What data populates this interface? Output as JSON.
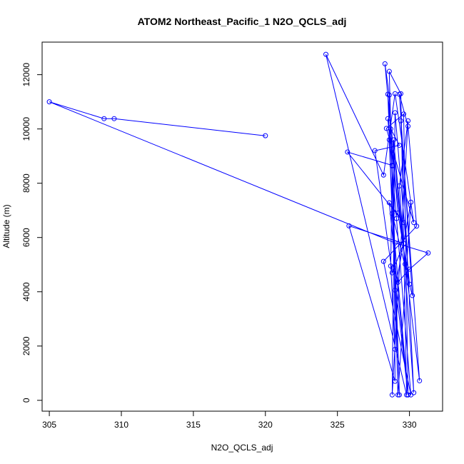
{
  "chart_data": {
    "type": "scatter",
    "title": "ATOM2 Northeast_Pacific_1 N2O_QCLS_adj",
    "xlabel": "N2O_QCLS_adj",
    "ylabel": "Altitude (m)",
    "xlim": [
      304.5,
      332.3
    ],
    "ylim": [
      -400,
      13200
    ],
    "xticks": [
      305,
      310,
      315,
      320,
      325,
      330
    ],
    "yticks": [
      0,
      2000,
      4000,
      6000,
      8000,
      10000,
      12000
    ],
    "grid": false,
    "legend": "none",
    "color": "#0000ff",
    "series": [
      {
        "x": [
          320.0,
          309.5,
          308.8,
          305.0,
          329.0,
          331.3,
          330.0,
          329.2,
          328.9,
          329.9,
          328.6,
          329.6,
          325.7,
          328.8,
          329.3,
          328.6,
          328.7,
          329.3,
          327.6,
          328.8,
          329.6,
          325.8,
          329.0,
          328.9,
          329.7,
          328.5,
          329.0,
          330.1,
          329.2,
          328.6,
          329.4,
          329.8,
          324.2,
          328.2,
          329.0,
          330.3,
          328.4,
          329.6,
          329.9,
          328.8,
          330.2,
          329.3,
          329.9,
          330.5,
          328.2,
          330.1,
          329.1,
          328.5,
          330.7,
          329.4,
          330.3,
          329.3,
          329.9,
          328.8,
          329.0,
          330.0,
          329.2,
          328.3,
          328.6,
          328.8,
          328.7,
          329.0
        ],
        "y": [
          9750,
          10380,
          10380,
          11000,
          5800,
          5430,
          4830,
          4350,
          4900,
          200,
          7280,
          6550,
          9150,
          8660,
          200,
          9600,
          10000,
          9400,
          9200,
          4700,
          5780,
          6430,
          700,
          9600,
          5020,
          11280,
          4060,
          7300,
          200,
          12120,
          11300,
          200,
          12750,
          8300,
          11300,
          6550,
          10020,
          10550,
          200,
          6880,
          3860,
          11280,
          10100,
          6420,
          5120,
          200,
          6700,
          10380,
          720,
          10300,
          280,
          7900,
          10300,
          200,
          10600,
          4280,
          6900,
          12400,
          11250,
          8640,
          4950,
          1880
        ]
      }
    ]
  }
}
